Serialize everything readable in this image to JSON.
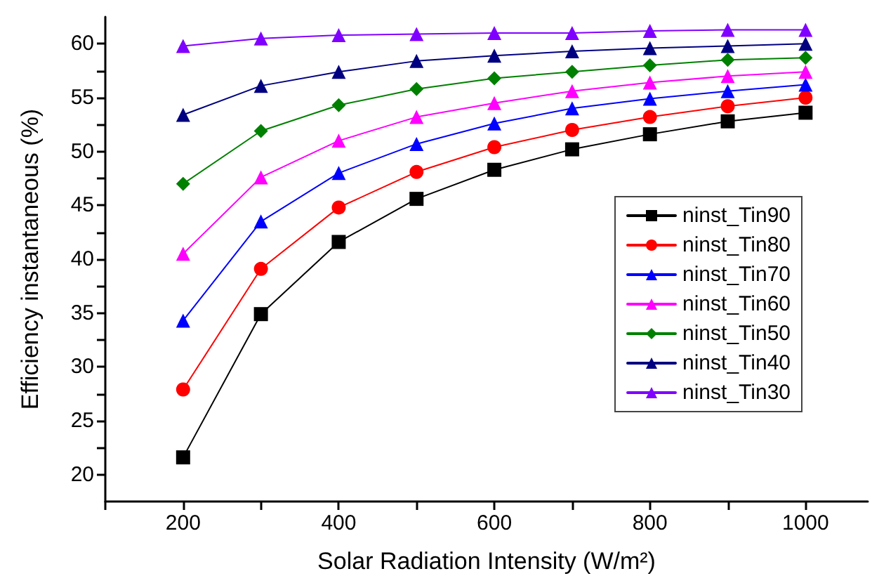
{
  "chart_data": {
    "type": "line",
    "xlabel": "Solar Radiation Intensity (W/m²)",
    "ylabel": "Efficiency instantaneous (%)",
    "x": [
      200,
      300,
      400,
      500,
      600,
      700,
      800,
      900,
      1000
    ],
    "xlim": [
      100,
      1080
    ],
    "xticks": [
      {
        "value": 100,
        "label": null
      },
      200,
      {
        "value": 300,
        "label": null
      },
      400,
      {
        "value": 500,
        "label": null
      },
      600,
      {
        "value": 700,
        "label": null
      },
      800,
      {
        "value": 900,
        "label": null
      },
      1000
    ],
    "ylim": [
      17.5,
      62.5
    ],
    "yticks": [
      20,
      {
        "value": 22.5,
        "label": null
      },
      25,
      {
        "value": 27.5,
        "label": null
      },
      30,
      {
        "value": 32.5,
        "label": null
      },
      35,
      {
        "value": 37.5,
        "label": null
      },
      40,
      {
        "value": 42.5,
        "label": null
      },
      45,
      {
        "value": 47.5,
        "label": null
      },
      50,
      {
        "value": 52.5,
        "label": null
      },
      55,
      {
        "value": 57.5,
        "label": null
      },
      60
    ],
    "grid": false,
    "legend": "right",
    "line_style": "solid",
    "series": [
      {
        "name": "ninst_Tin90",
        "color": "#000000",
        "marker": "square",
        "values": [
          21.6,
          34.9,
          41.6,
          45.6,
          48.3,
          50.2,
          51.6,
          52.8,
          53.6
        ]
      },
      {
        "name": "ninst_Tin80",
        "color": "#ff0000",
        "marker": "circle",
        "values": [
          27.9,
          39.1,
          44.8,
          48.1,
          50.4,
          52.0,
          53.2,
          54.2,
          55.0
        ]
      },
      {
        "name": "ninst_Tin70",
        "color": "#0000ff",
        "marker": "triangle",
        "values": [
          34.3,
          43.5,
          48.0,
          50.7,
          52.6,
          54.0,
          54.9,
          55.6,
          56.2
        ]
      },
      {
        "name": "ninst_Tin60",
        "color": "#ff00ff",
        "marker": "triangle",
        "values": [
          40.5,
          47.6,
          51.0,
          53.2,
          54.5,
          55.6,
          56.4,
          57.0,
          57.4
        ]
      },
      {
        "name": "ninst_Tin50",
        "color": "#008000",
        "marker": "diamond",
        "values": [
          47.0,
          51.9,
          54.3,
          55.8,
          56.8,
          57.4,
          58.0,
          58.5,
          58.7
        ]
      },
      {
        "name": "ninst_Tin40",
        "color": "#000080",
        "marker": "triangle",
        "values": [
          53.4,
          56.1,
          57.4,
          58.4,
          58.9,
          59.3,
          59.6,
          59.8,
          60.0
        ]
      },
      {
        "name": "ninst_Tin30",
        "color": "#8000ff",
        "marker": "triangle",
        "values": [
          59.8,
          60.5,
          60.8,
          60.9,
          61.0,
          61.0,
          61.2,
          61.3,
          61.3
        ]
      }
    ]
  }
}
